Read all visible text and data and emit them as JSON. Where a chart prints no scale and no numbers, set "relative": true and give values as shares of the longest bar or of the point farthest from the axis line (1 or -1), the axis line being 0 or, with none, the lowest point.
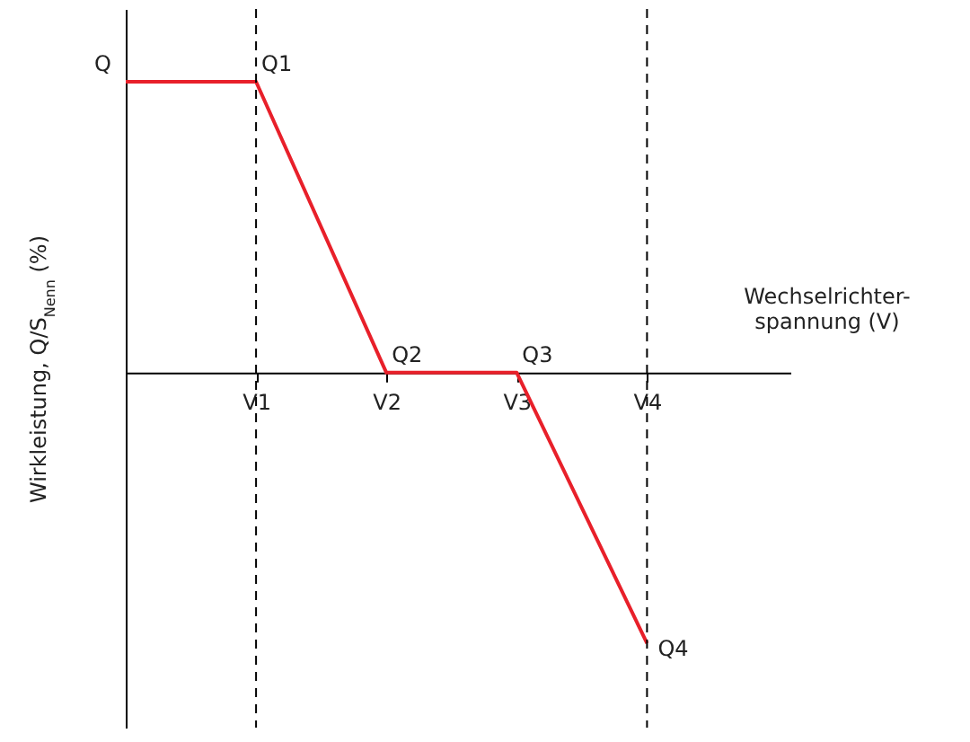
{
  "chart_data": {
    "type": "line",
    "relative": true,
    "xlabel": "Wechselrichter-\nspannung (V)",
    "ylabel": "Wirkleistung, Q/S$_{Nenn}$ (%)",
    "categories": [
      null,
      "V1",
      "V2",
      "V3",
      "V4"
    ],
    "series": [
      {
        "color": "#e8202a",
        "values": [
          1,
          1,
          0,
          0,
          -0.93
        ]
      }
    ],
    "ref_lines": [
      {
        "axis": "x",
        "value": "V1",
        "line_style": "dashed",
        "color": "#000000"
      },
      {
        "axis": "x",
        "value": "V4",
        "line_style": "dashed",
        "color": "#000000"
      }
    ],
    "annotations": [
      "Q",
      {
        "text": "Q1",
        "x": "V1",
        "y": 1
      },
      {
        "text": "Q2",
        "x": "V2",
        "y": 0
      },
      {
        "text": "Q3",
        "x": "V3",
        "y": 0
      },
      {
        "text": "Q4",
        "x": "V4",
        "y": -0.93
      }
    ],
    "grid": false,
    "marker": "none",
    "line_style": "solid"
  }
}
